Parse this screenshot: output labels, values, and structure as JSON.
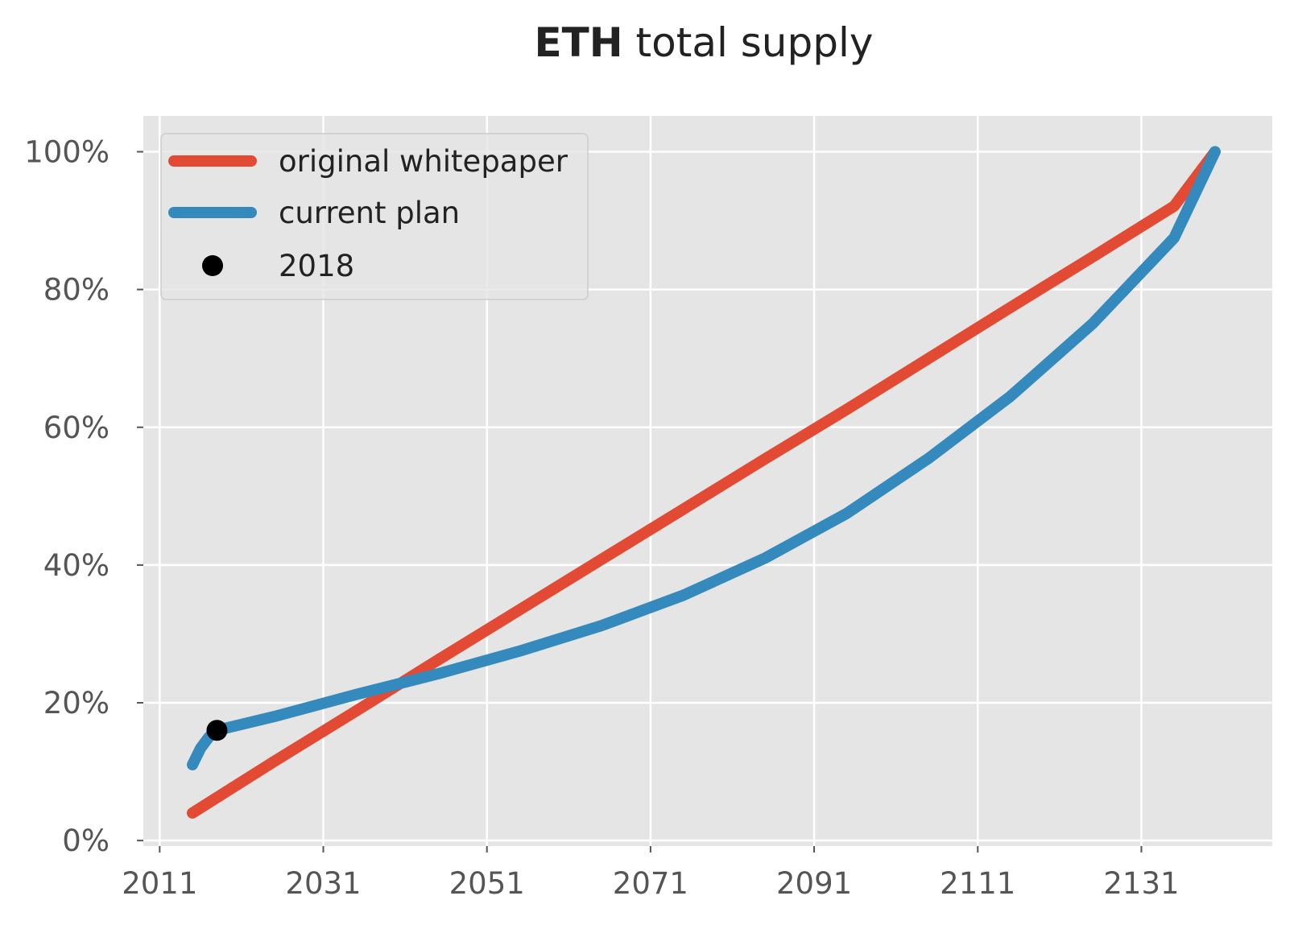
{
  "chart_data": {
    "type": "line",
    "title": {
      "bold": "ETH",
      "rest": " total supply"
    },
    "xlabel": "",
    "ylabel": "",
    "xlim": [
      2009,
      2147
    ],
    "ylim": [
      -0.8,
      105.2
    ],
    "x_ticks": [
      2011,
      2031,
      2051,
      2071,
      2091,
      2111,
      2131
    ],
    "x_tick_labels": [
      "2011",
      "2031",
      "2051",
      "2071",
      "2091",
      "2111",
      "2131"
    ],
    "y_ticks": [
      0,
      20,
      40,
      60,
      80,
      100
    ],
    "y_tick_labels": [
      "0%",
      "20%",
      "40%",
      "60%",
      "80%",
      "100%"
    ],
    "grid": true,
    "legend_position": "top-left",
    "series": [
      {
        "name": "original whitepaper",
        "color": "#E24A33",
        "x": [
          2015,
          2025,
          2035,
          2045,
          2055,
          2065,
          2075,
          2085,
          2095,
          2105,
          2115,
          2125,
          2135,
          2140
        ],
        "y": [
          4,
          11.5,
          18.8,
          26.2,
          33.5,
          40.8,
          48.1,
          55.4,
          62.6,
          70,
          77.4,
          84.7,
          92.1,
          100
        ]
      },
      {
        "name": "current plan",
        "color": "#348ABD",
        "x": [
          2015,
          2016,
          2017,
          2018,
          2025,
          2035,
          2045,
          2055,
          2065,
          2075,
          2085,
          2095,
          2105,
          2115,
          2125,
          2135,
          2140
        ],
        "y": [
          11,
          13.4,
          15,
          16,
          18,
          21.2,
          24.2,
          27.5,
          31.2,
          35.6,
          41,
          47.5,
          55.5,
          64.5,
          75,
          87.5,
          100
        ]
      }
    ],
    "markers": [
      {
        "name": "2018",
        "color": "#000000",
        "x": 2018,
        "y": 16
      }
    ]
  }
}
